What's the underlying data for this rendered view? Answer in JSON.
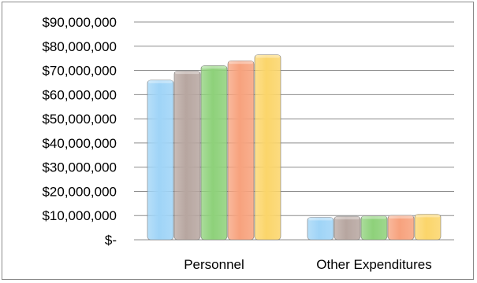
{
  "chart_data": {
    "type": "bar",
    "categories": [
      "Personnel",
      "Other Expenditures"
    ],
    "series": [
      {
        "values": [
          66000000,
          9300000
        ],
        "color": "#9fd4f7"
      },
      {
        "values": [
          69800000,
          9700000
        ],
        "color": "#b7a6a0"
      },
      {
        "values": [
          72000000,
          9900000
        ],
        "color": "#8ed17a"
      },
      {
        "values": [
          74000000,
          10100000
        ],
        "color": "#f7a27d"
      },
      {
        "values": [
          76500000,
          10600000
        ],
        "color": "#fbd56a"
      }
    ],
    "ylim": [
      0,
      90000000
    ],
    "yticks": [
      0,
      10000000,
      20000000,
      30000000,
      40000000,
      50000000,
      60000000,
      70000000,
      80000000,
      90000000
    ],
    "ytick_labels": [
      "$-",
      "$10,000,000",
      "$20,000,000",
      "$30,000,000",
      "$40,000,000",
      "$50,000,000",
      "$60,000,000",
      "$70,000,000",
      "$80,000,000",
      "$90,000,000"
    ],
    "grid": true,
    "legend": "none",
    "title": "",
    "xlabel": "",
    "ylabel": ""
  }
}
